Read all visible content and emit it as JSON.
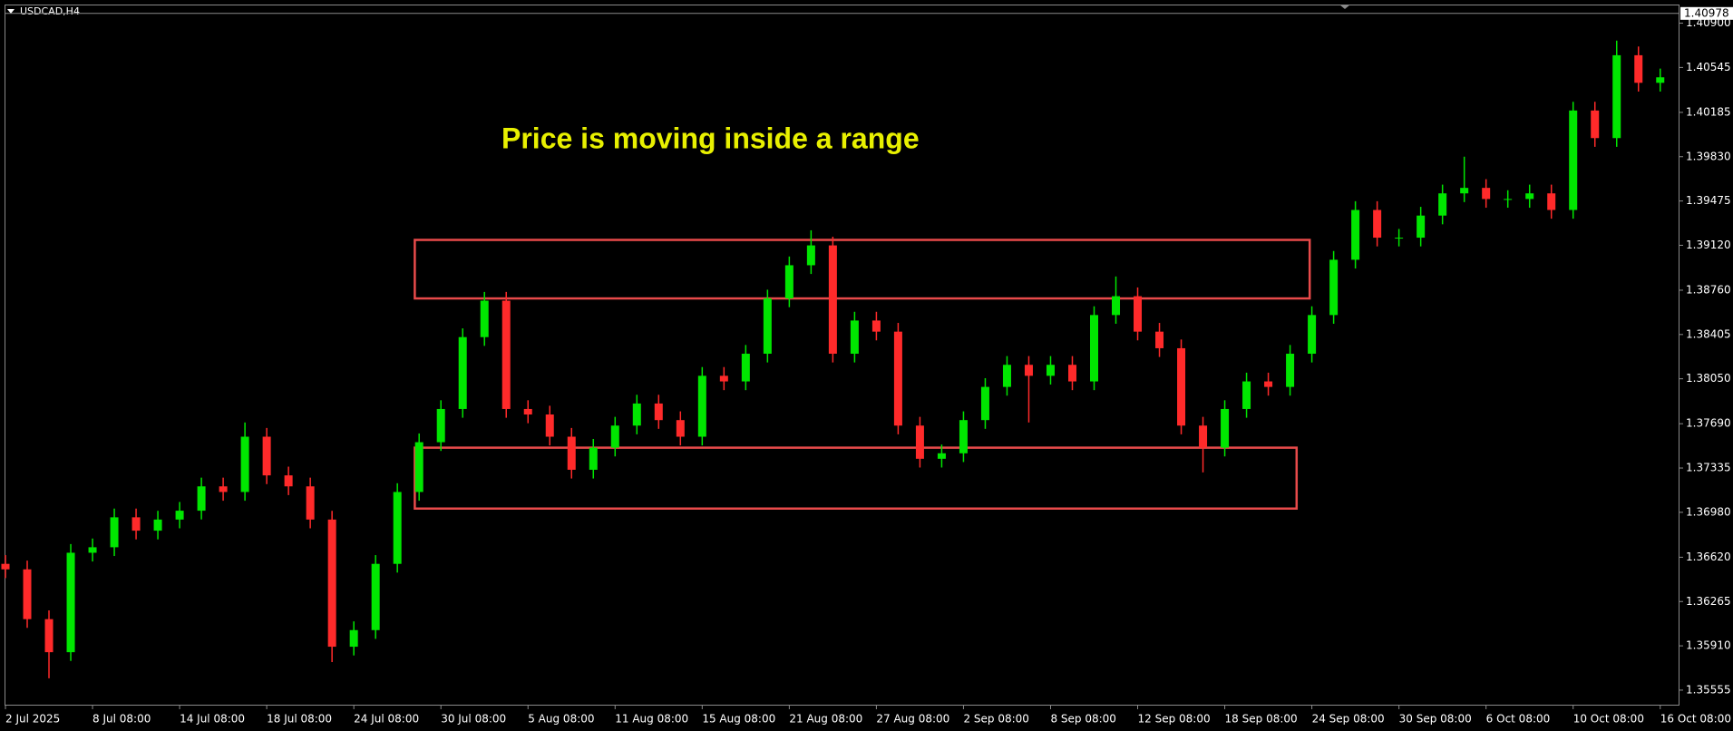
{
  "chart_data": {
    "type": "candlestick",
    "symbol": "USDCAD,H4",
    "annotation": "Price is moving inside a range",
    "current_price": {
      "value": 1.40978,
      "label": "1.40978"
    },
    "up_color": "#00e600",
    "down_color": "#ff2a2a",
    "categories": [
      "2 Jul 2025",
      null,
      null,
      null,
      "8 Jul 08:00",
      null,
      null,
      null,
      "14 Jul 08:00",
      null,
      null,
      null,
      "18 Jul 08:00",
      null,
      null,
      null,
      "24 Jul 08:00",
      null,
      null,
      null,
      "30 Jul 08:00",
      null,
      null,
      null,
      "5 Aug 08:00",
      null,
      null,
      null,
      "11 Aug 08:00",
      null,
      null,
      null,
      "15 Aug 08:00",
      null,
      null,
      null,
      "21 Aug 08:00",
      null,
      null,
      null,
      "27 Aug 08:00",
      null,
      null,
      null,
      "2 Sep 08:00",
      null,
      null,
      null,
      "8 Sep 08:00",
      null,
      null,
      null,
      "12 Sep 08:00",
      null,
      null,
      null,
      "18 Sep 08:00",
      null,
      null,
      null,
      "24 Sep 08:00",
      null,
      null,
      null,
      "30 Sep 08:00",
      null,
      null,
      null,
      "6 Oct 08:00",
      null,
      null,
      null,
      "10 Oct 08:00",
      null,
      null,
      null,
      "16 Oct 08:00"
    ],
    "open": [
      1.36567,
      1.36523,
      1.36124,
      1.35859,
      1.36656,
      1.367,
      1.3694,
      1.36833,
      1.36922,
      1.36993,
      1.37188,
      1.37143,
      1.37586,
      1.37276,
      1.37188,
      1.36922,
      1.35903,
      1.36036,
      1.36567,
      1.37143,
      1.37542,
      1.37808,
      1.38384,
      1.38676,
      1.37808,
      1.37764,
      1.37586,
      1.37321,
      1.37498,
      1.37675,
      1.37852,
      1.37719,
      1.37586,
      1.38074,
      1.38029,
      1.38251,
      1.38694,
      1.3896,
      1.39119,
      1.38251,
      1.38517,
      1.38428,
      1.37675,
      1.37409,
      1.37453,
      1.37719,
      1.37985,
      1.38162,
      1.38074,
      1.38162,
      1.38029,
      1.38561,
      1.38712,
      1.38428,
      1.38295,
      1.37675,
      1.37498,
      1.37808,
      1.38029,
      1.37985,
      1.38251,
      1.38561,
      1.39004,
      1.39403,
      1.39181,
      1.39181,
      1.39358,
      1.39536,
      1.3958,
      1.39491,
      1.39491,
      1.39536,
      1.39403,
      1.402,
      1.39979,
      1.40643,
      1.40422
    ],
    "high": [
      1.36637,
      1.36593,
      1.36194,
      1.36726,
      1.3677,
      1.3701,
      1.3701,
      1.36992,
      1.37063,
      1.37258,
      1.37258,
      1.377,
      1.37656,
      1.37346,
      1.37258,
      1.36992,
      1.36106,
      1.36637,
      1.37213,
      1.37612,
      1.37878,
      1.38454,
      1.38746,
      1.38746,
      1.37878,
      1.37834,
      1.37656,
      1.37568,
      1.37745,
      1.37922,
      1.37922,
      1.37789,
      1.38144,
      1.38144,
      1.38321,
      1.38764,
      1.3903,
      1.3924,
      1.39189,
      1.38587,
      1.38587,
      1.38498,
      1.37745,
      1.37523,
      1.37789,
      1.38055,
      1.38232,
      1.38232,
      1.38232,
      1.38232,
      1.38631,
      1.3887,
      1.38782,
      1.38498,
      1.38365,
      1.37745,
      1.37878,
      1.38099,
      1.38099,
      1.38321,
      1.38631,
      1.39074,
      1.39473,
      1.39473,
      1.39251,
      1.39428,
      1.39606,
      1.3983,
      1.3965,
      1.39561,
      1.39606,
      1.39606,
      1.4027,
      1.4027,
      1.4076,
      1.40713,
      1.40536
    ],
    "low": [
      1.36453,
      1.36054,
      1.3565,
      1.35789,
      1.36586,
      1.3663,
      1.36763,
      1.36763,
      1.36852,
      1.36923,
      1.37073,
      1.37073,
      1.37206,
      1.37118,
      1.36852,
      1.3578,
      1.35833,
      1.35966,
      1.36497,
      1.37073,
      1.37472,
      1.37738,
      1.38314,
      1.37738,
      1.37694,
      1.37516,
      1.37251,
      1.37251,
      1.37428,
      1.37605,
      1.37649,
      1.37516,
      1.37516,
      1.37959,
      1.37959,
      1.38181,
      1.38624,
      1.3889,
      1.38181,
      1.38181,
      1.38358,
      1.37605,
      1.37339,
      1.37339,
      1.37383,
      1.37649,
      1.37915,
      1.377,
      1.38004,
      1.37959,
      1.37959,
      1.38491,
      1.38358,
      1.38225,
      1.37605,
      1.373,
      1.37428,
      1.37738,
      1.37915,
      1.37915,
      1.38181,
      1.38491,
      1.38934,
      1.39111,
      1.39111,
      1.39111,
      1.39288,
      1.39466,
      1.39421,
      1.39421,
      1.39421,
      1.39333,
      1.39333,
      1.39909,
      1.39909,
      1.40352,
      1.40352
    ],
    "close": [
      1.36523,
      1.36124,
      1.35859,
      1.36656,
      1.367,
      1.3694,
      1.36833,
      1.36922,
      1.36993,
      1.37188,
      1.37143,
      1.37586,
      1.37276,
      1.37188,
      1.36922,
      1.35903,
      1.36036,
      1.36567,
      1.37143,
      1.37542,
      1.37808,
      1.38384,
      1.38676,
      1.37808,
      1.37764,
      1.37586,
      1.37321,
      1.37498,
      1.37675,
      1.37852,
      1.37719,
      1.37586,
      1.38074,
      1.38029,
      1.38251,
      1.38694,
      1.3896,
      1.39119,
      1.38251,
      1.38517,
      1.38428,
      1.37675,
      1.37409,
      1.37453,
      1.37719,
      1.37985,
      1.38162,
      1.38074,
      1.38162,
      1.38029,
      1.38561,
      1.38712,
      1.38428,
      1.38295,
      1.37675,
      1.37498,
      1.37808,
      1.38029,
      1.37985,
      1.38251,
      1.38561,
      1.39004,
      1.39403,
      1.39181,
      1.39181,
      1.39358,
      1.39536,
      1.3958,
      1.39491,
      1.39491,
      1.39536,
      1.39403,
      1.402,
      1.39979,
      1.40643,
      1.40422,
      1.40466
    ],
    "zones": [
      {
        "top": 1.39163,
        "bottom": 1.38694,
        "start": 18.8,
        "end": 59.9,
        "color": "#e84a4a"
      },
      {
        "top": 1.37498,
        "bottom": 1.3701,
        "start": 18.8,
        "end": 59.3,
        "color": "#e84a4a"
      }
    ],
    "ylim": [
      1.35431,
      1.41042
    ],
    "yticks": [
      {
        "value": 1.409,
        "label": "1.40900"
      },
      {
        "value": 1.40545,
        "label": "1.40545"
      },
      {
        "value": 1.40185,
        "label": "1.40185"
      },
      {
        "value": 1.3983,
        "label": "1.39830"
      },
      {
        "value": 1.39475,
        "label": "1.39475"
      },
      {
        "value": 1.3912,
        "label": "1.39120"
      },
      {
        "value": 1.3876,
        "label": "1.38760"
      },
      {
        "value": 1.38405,
        "label": "1.38405"
      },
      {
        "value": 1.3805,
        "label": "1.38050"
      },
      {
        "value": 1.3769,
        "label": "1.37690"
      },
      {
        "value": 1.37335,
        "label": "1.37335"
      },
      {
        "value": 1.3698,
        "label": "1.36980"
      },
      {
        "value": 1.3662,
        "label": "1.36620"
      },
      {
        "value": 1.36265,
        "label": "1.36265"
      },
      {
        "value": 1.3591,
        "label": "1.35910"
      },
      {
        "value": 1.35555,
        "label": "1.35555"
      }
    ],
    "grid": false
  }
}
